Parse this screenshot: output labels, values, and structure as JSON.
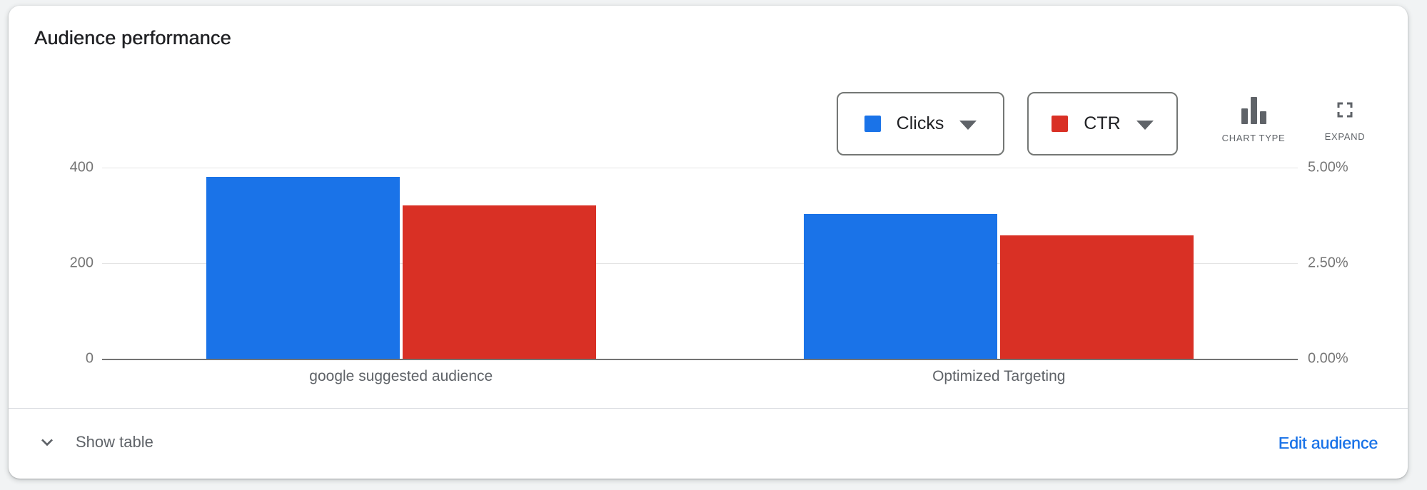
{
  "card": {
    "title": "Audience performance"
  },
  "toolbar": {
    "chart_type": {
      "label": "CHART TYPE"
    },
    "expand": {
      "label": "EXPAND"
    }
  },
  "chart_data": {
    "type": "bar",
    "categories": [
      "google suggested audience",
      "Optimized Targeting"
    ],
    "series": [
      {
        "name": "Clicks",
        "color": "#1a73e8",
        "axis": "left",
        "values": [
          380,
          303
        ]
      },
      {
        "name": "CTR",
        "color": "#d93025",
        "axis": "right",
        "values": [
          4.02,
          3.22
        ]
      }
    ],
    "left_axis": {
      "ticks": [
        400,
        200,
        0
      ],
      "units_per_gridline": 200
    },
    "right_axis": {
      "ticks": [
        "5.00%",
        "2.50%",
        "0.00%"
      ],
      "percent_per_gridline": 2.5
    },
    "grid": true,
    "legend_position": "top-right",
    "legend": [
      {
        "label": "Clicks",
        "swatch_color": "#1a73e8"
      },
      {
        "label": "CTR",
        "swatch_color": "#d93025"
      }
    ]
  },
  "footer": {
    "show_table_label": "Show table",
    "edit_audience_label": "Edit audience"
  }
}
